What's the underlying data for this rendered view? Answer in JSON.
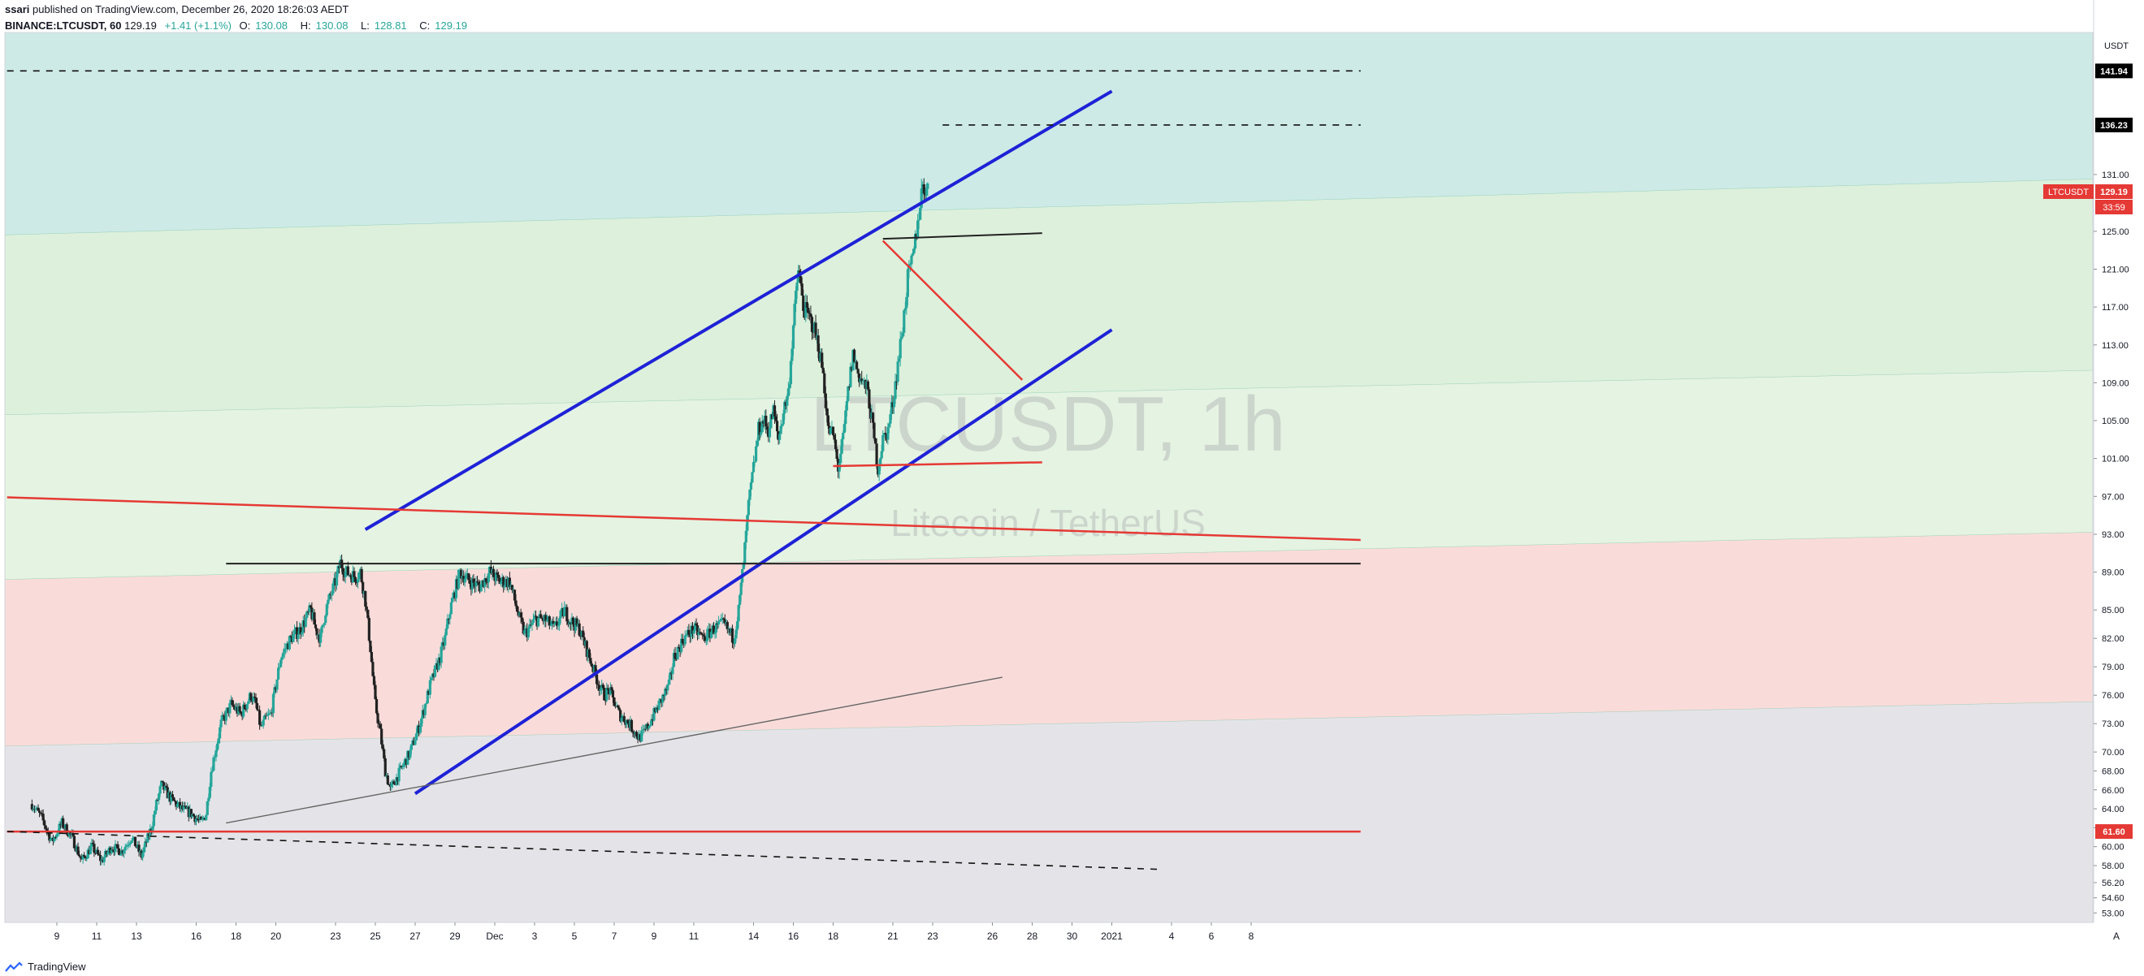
{
  "header": {
    "publisher": "ssari",
    "published_text": "published on TradingView.com, December 26, 2020 18:26:03 AEDT",
    "symbol_line": "BINANCE:LTCUSDT, 60",
    "last": "129.19",
    "change": "+1.41 (+1.1%)",
    "o_label": "O:",
    "o": "130.08",
    "h_label": "H:",
    "h": "130.08",
    "l_label": "L:",
    "l": "128.81",
    "c_label": "C:",
    "c": "129.19"
  },
  "watermark": {
    "title": "LTCUSDT, 1h",
    "subtitle": "Litecoin / TetherUS"
  },
  "footer": {
    "brand": "TradingView"
  },
  "colors": {
    "up": "#26a69a",
    "down": "#ef5350",
    "channel": "#1e22d6",
    "red_line": "#e53935",
    "zone_teal": "#cdeae6",
    "zone_green": "#ddf0dc",
    "zone_lightgreen": "#e5f3e2",
    "zone_pink": "#f9dcda",
    "zone_gray": "#e4e4e8"
  },
  "chart_data": {
    "type": "candlestick",
    "title": "",
    "xlabel": "",
    "ylabel": "",
    "currency": "USDT",
    "ylim": [
      52,
      146
    ],
    "y_ticks": [
      "53.00",
      "54.60",
      "56.20",
      "58.00",
      "60.00",
      "62.00",
      "64.00",
      "66.00",
      "68.00",
      "70.00",
      "73.00",
      "76.00",
      "79.00",
      "82.00",
      "85.00",
      "89.00",
      "93.00",
      "97.00",
      "101.00",
      "105.00",
      "109.00",
      "113.00",
      "117.00",
      "121.00",
      "125.00",
      "131.00"
    ],
    "x_ticks": [
      "9",
      "11",
      "13",
      "16",
      "18",
      "20",
      "23",
      "25",
      "27",
      "29",
      "Dec",
      "3",
      "5",
      "7",
      "9",
      "11",
      "14",
      "16",
      "18",
      "21",
      "23",
      "26",
      "28",
      "30",
      "2021",
      "4",
      "6",
      "8"
    ],
    "price_labels": [
      {
        "value": 141.94,
        "text": "141.94",
        "style": "black"
      },
      {
        "value": 136.23,
        "text": "136.23",
        "style": "black"
      },
      {
        "value": 129.19,
        "text": "129.19",
        "symbol": "LTCUSDT",
        "countdown": "33:59",
        "style": "red"
      },
      {
        "value": 61.6,
        "text": "61.60",
        "style": "red"
      }
    ],
    "price_path": [
      [
        0,
        64.5
      ],
      [
        2,
        63
      ],
      [
        4,
        60.5
      ],
      [
        6,
        62.5
      ],
      [
        8,
        61
      ],
      [
        10,
        58.5
      ],
      [
        12,
        60
      ],
      [
        14,
        58.5
      ],
      [
        16,
        60
      ],
      [
        18,
        59.5
      ],
      [
        20,
        61
      ],
      [
        22,
        59
      ],
      [
        24,
        62
      ],
      [
        25,
        64.5
      ],
      [
        26,
        66.5
      ],
      [
        28,
        65
      ],
      [
        30,
        64
      ],
      [
        32,
        63.5
      ],
      [
        34,
        62.5
      ],
      [
        35,
        63.5
      ],
      [
        36,
        68
      ],
      [
        38,
        73
      ],
      [
        40,
        75
      ],
      [
        42,
        74
      ],
      [
        44,
        76
      ],
      [
        45,
        75
      ],
      [
        46,
        72.5
      ],
      [
        47,
        73.5
      ],
      [
        48,
        74
      ],
      [
        50,
        80
      ],
      [
        52,
        82
      ],
      [
        54,
        83
      ],
      [
        56,
        85
      ],
      [
        57,
        83
      ],
      [
        58,
        82
      ],
      [
        59,
        85
      ],
      [
        61,
        88
      ],
      [
        62,
        90
      ],
      [
        63,
        89
      ],
      [
        65,
        88.5
      ],
      [
        66,
        89
      ],
      [
        67,
        86
      ],
      [
        68,
        81
      ],
      [
        69,
        75
      ],
      [
        70,
        72
      ],
      [
        71,
        68
      ],
      [
        72,
        66
      ],
      [
        74,
        68
      ],
      [
        76,
        70
      ],
      [
        78,
        73
      ],
      [
        80,
        77
      ],
      [
        82,
        80
      ],
      [
        83,
        82
      ],
      [
        84,
        85
      ],
      [
        86,
        89
      ],
      [
        88,
        88
      ],
      [
        90,
        87.5
      ],
      [
        92,
        89
      ],
      [
        94,
        88
      ],
      [
        96,
        88
      ],
      [
        97,
        86
      ],
      [
        98,
        84
      ],
      [
        99,
        82.5
      ],
      [
        100,
        83
      ],
      [
        101,
        84
      ],
      [
        103,
        84
      ],
      [
        105,
        83
      ],
      [
        107,
        85
      ],
      [
        108,
        84
      ],
      [
        110,
        83
      ],
      [
        112,
        80
      ],
      [
        114,
        77
      ],
      [
        115,
        76
      ],
      [
        116,
        76.5
      ],
      [
        118,
        74
      ],
      [
        120,
        73
      ],
      [
        122,
        71.5
      ],
      [
        123,
        72
      ],
      [
        124,
        73
      ],
      [
        126,
        75
      ],
      [
        128,
        77
      ],
      [
        129,
        80
      ],
      [
        131,
        82
      ],
      [
        133,
        83
      ],
      [
        135,
        82
      ],
      [
        137,
        83
      ],
      [
        139,
        83.5
      ],
      [
        141,
        82
      ],
      [
        142,
        85
      ],
      [
        143,
        90
      ],
      [
        144,
        96
      ],
      [
        145,
        100
      ],
      [
        146,
        104
      ],
      [
        147,
        105
      ],
      [
        148,
        104
      ],
      [
        149,
        106
      ],
      [
        150,
        103
      ],
      [
        151,
        106
      ],
      [
        152,
        108
      ],
      [
        153,
        115
      ],
      [
        154,
        121
      ],
      [
        155,
        117
      ],
      [
        156,
        116
      ],
      [
        157,
        115
      ],
      [
        158,
        113
      ],
      [
        159,
        110
      ],
      [
        160,
        104
      ],
      [
        161,
        103.5
      ],
      [
        162,
        100
      ],
      [
        163,
        103
      ],
      [
        164,
        108
      ],
      [
        165,
        112
      ],
      [
        166,
        110
      ],
      [
        167,
        109
      ],
      [
        168,
        108
      ],
      [
        169,
        104
      ],
      [
        170,
        100
      ],
      [
        171,
        103
      ],
      [
        172,
        104
      ],
      [
        173,
        107
      ],
      [
        174,
        111
      ],
      [
        175,
        115
      ],
      [
        176,
        120
      ],
      [
        177,
        122
      ],
      [
        178,
        126
      ],
      [
        179,
        130
      ],
      [
        180,
        129.19
      ]
    ],
    "trend_lines": [
      {
        "name": "upper-channel",
        "color": "blue",
        "points": [
          [
            "2020-11-24 12:00",
            93.5
          ],
          [
            "2021-01-01 00:00",
            139.8
          ]
        ]
      },
      {
        "name": "lower-channel",
        "color": "blue",
        "points": [
          [
            "2020-11-27 00:00",
            65.6
          ],
          [
            "2021-01-01 00:00",
            114.6
          ]
        ]
      },
      {
        "name": "red-descending",
        "color": "red",
        "points": [
          [
            "2020-11-06 12:00",
            96.9
          ],
          [
            "2021-01-13 12:00",
            92.4
          ]
        ]
      },
      {
        "name": "red-support",
        "color": "red",
        "points": [
          [
            "2020-11-06 12:00",
            61.6
          ],
          [
            "2021-01-13 12:00",
            61.6
          ]
        ]
      },
      {
        "name": "red-local-downtrend",
        "color": "red",
        "points": [
          [
            "2020-12-20 12:00",
            124
          ],
          [
            "2020-12-27 12:00",
            109.3
          ]
        ]
      },
      {
        "name": "red-local-base",
        "color": "red",
        "points": [
          [
            "2020-12-18 00:00",
            100.2
          ],
          [
            "2020-12-28 12:00",
            100.6
          ]
        ]
      },
      {
        "name": "black-top",
        "color": "black",
        "points": [
          [
            "2020-12-20 12:00",
            124.2
          ],
          [
            "2020-12-28 12:00",
            124.8
          ]
        ]
      },
      {
        "name": "black-horizontal",
        "color": "black",
        "points": [
          [
            "2020-11-17 12:00",
            89.9
          ],
          [
            "2021-01-13 12:00",
            89.9
          ]
        ]
      },
      {
        "name": "gray-rising",
        "color": "gray",
        "points": [
          [
            "2020-11-17 12:00",
            62.5
          ],
          [
            "2020-12-26 12:00",
            77.9
          ]
        ]
      },
      {
        "name": "dashed-declining",
        "color": "black-dashed",
        "points": [
          [
            "2020-11-06 12:00",
            61.6
          ],
          [
            "2021-01-03 12:00",
            57.6
          ]
        ]
      },
      {
        "name": "dashed-top",
        "color": "black-dashed",
        "points": [
          [
            "2020-11-06 12:00",
            141.94
          ],
          [
            "2021-01-13 12:00",
            141.94
          ]
        ]
      },
      {
        "name": "dashed-136",
        "color": "black-dashed",
        "points": [
          [
            "2020-12-23 12:00",
            136.23
          ],
          [
            "2021-01-13 12:00",
            136.23
          ]
        ]
      }
    ],
    "zones": [
      {
        "name": "teal",
        "top": 146,
        "bottom_left": 124.6,
        "bottom_right": 130.5
      },
      {
        "name": "green",
        "top_left": 124.6,
        "top_right": 130.5,
        "bottom_left": 105.6,
        "bottom_right": 110.3
      },
      {
        "name": "light-green",
        "top_left": 105.6,
        "top_right": 110.3,
        "bottom_left": 88.2,
        "bottom_right": 93.2
      },
      {
        "name": "pink",
        "top_left": 88.2,
        "top_right": 93.2,
        "bottom_left": 70.6,
        "bottom_right": 75.3
      },
      {
        "name": "gray",
        "top_left": 70.6,
        "top_right": 75.3,
        "bottom": 52
      }
    ]
  }
}
